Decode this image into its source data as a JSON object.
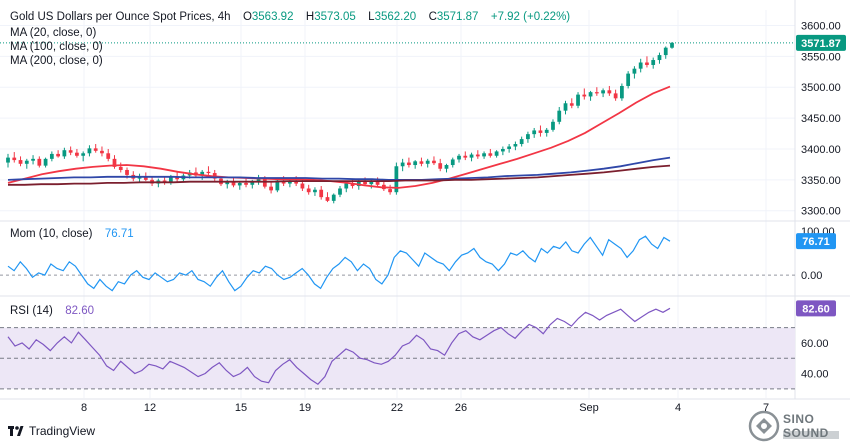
{
  "header": {
    "symbol": "Gold US Dollars per Ounce Spot Prices, 4h",
    "o_label": "O",
    "o_value": "3563.92",
    "h_label": "H",
    "h_value": "3573.05",
    "l_label": "L",
    "l_value": "3562.20",
    "c_label": "C",
    "c_value": "3571.87",
    "change": "+7.92 (+0.22%)"
  },
  "ma_legends": [
    "MA (20, close, 0)",
    "MA (100, close, 0)",
    "MA (200, close, 0)"
  ],
  "momentum": {
    "label": "Mom (10, close)",
    "value": "76.71"
  },
  "rsi": {
    "label": "RSI (14)",
    "value": "82.60"
  },
  "brand": {
    "tradingview": "TradingView",
    "watermark": "SINO SOUND"
  },
  "colors": {
    "up": "#089981",
    "down": "#f23645",
    "ma20": "#f23645",
    "ma100": "#2f47a8",
    "ma200": "#7b1f2e",
    "mom": "#2196f3",
    "rsi": "#7e57c2",
    "rsi_band": "#ede7f6",
    "grid": "#f0f3fa",
    "last_price": "#089981"
  },
  "chart_data": [
    {
      "type": "candlestick",
      "title": "Gold US Dollars per Ounce Spot Prices, 4h",
      "y_ticks": [
        3300,
        3350,
        3400,
        3450,
        3500,
        3550,
        3600
      ],
      "ylim": [
        3285,
        3625
      ],
      "last_price": 3571.87,
      "x_labels": [
        "8",
        "12",
        "15",
        "19",
        "22",
        "26",
        "Sep",
        "4",
        "7"
      ],
      "candles": [
        [
          3378,
          3392,
          3370,
          3386
        ],
        [
          3386,
          3395,
          3378,
          3382
        ],
        [
          3382,
          3388,
          3372,
          3376
        ],
        [
          3376,
          3384,
          3368,
          3381
        ],
        [
          3381,
          3390,
          3375,
          3384
        ],
        [
          3384,
          3388,
          3370,
          3373
        ],
        [
          3373,
          3386,
          3370,
          3384
        ],
        [
          3384,
          3396,
          3380,
          3392
        ],
        [
          3392,
          3398,
          3386,
          3388
        ],
        [
          3388,
          3402,
          3384,
          3398
        ],
        [
          3398,
          3404,
          3390,
          3394
        ],
        [
          3394,
          3400,
          3386,
          3389
        ],
        [
          3389,
          3396,
          3380,
          3393
        ],
        [
          3393,
          3406,
          3388,
          3401
        ],
        [
          3401,
          3408,
          3394,
          3397
        ],
        [
          3397,
          3404,
          3388,
          3393
        ],
        [
          3393,
          3400,
          3380,
          3384
        ],
        [
          3384,
          3390,
          3368,
          3371
        ],
        [
          3371,
          3378,
          3362,
          3366
        ],
        [
          3366,
          3370,
          3352,
          3358
        ],
        [
          3358,
          3364,
          3348,
          3352
        ],
        [
          3352,
          3360,
          3345,
          3356
        ],
        [
          3356,
          3362,
          3348,
          3350
        ],
        [
          3350,
          3356,
          3340,
          3344
        ],
        [
          3344,
          3352,
          3338,
          3349
        ],
        [
          3349,
          3356,
          3342,
          3346
        ],
        [
          3346,
          3358,
          3342,
          3354
        ],
        [
          3354,
          3362,
          3346,
          3351
        ],
        [
          3351,
          3360,
          3346,
          3357
        ],
        [
          3357,
          3366,
          3352,
          3362
        ],
        [
          3362,
          3370,
          3354,
          3357
        ],
        [
          3357,
          3366,
          3350,
          3363
        ],
        [
          3363,
          3372,
          3358,
          3361
        ],
        [
          3361,
          3366,
          3348,
          3352
        ],
        [
          3352,
          3356,
          3340,
          3343
        ],
        [
          3343,
          3350,
          3336,
          3347
        ],
        [
          3347,
          3354,
          3338,
          3341
        ],
        [
          3341,
          3348,
          3334,
          3345
        ],
        [
          3345,
          3352,
          3338,
          3342
        ],
        [
          3342,
          3350,
          3336,
          3347
        ],
        [
          3347,
          3358,
          3342,
          3352
        ],
        [
          3352,
          3356,
          3336,
          3339
        ],
        [
          3339,
          3346,
          3328,
          3333
        ],
        [
          3333,
          3352,
          3330,
          3349
        ],
        [
          3349,
          3356,
          3340,
          3344
        ],
        [
          3344,
          3352,
          3338,
          3348
        ],
        [
          3348,
          3356,
          3340,
          3344
        ],
        [
          3344,
          3350,
          3332,
          3336
        ],
        [
          3336,
          3342,
          3326,
          3330
        ],
        [
          3330,
          3338,
          3324,
          3334
        ],
        [
          3334,
          3340,
          3318,
          3322
        ],
        [
          3322,
          3330,
          3314,
          3316
        ],
        [
          3316,
          3328,
          3312,
          3326
        ],
        [
          3326,
          3340,
          3322,
          3336
        ],
        [
          3336,
          3348,
          3330,
          3344
        ],
        [
          3344,
          3352,
          3336,
          3340
        ],
        [
          3340,
          3350,
          3334,
          3347
        ],
        [
          3347,
          3354,
          3340,
          3343
        ],
        [
          3343,
          3350,
          3336,
          3348
        ],
        [
          3348,
          3354,
          3340,
          3342
        ],
        [
          3342,
          3348,
          3332,
          3335
        ],
        [
          3335,
          3342,
          3326,
          3330
        ],
        [
          3330,
          3378,
          3326,
          3372
        ],
        [
          3372,
          3384,
          3364,
          3378
        ],
        [
          3378,
          3386,
          3370,
          3374
        ],
        [
          3374,
          3382,
          3368,
          3380
        ],
        [
          3380,
          3386,
          3372,
          3376
        ],
        [
          3376,
          3384,
          3370,
          3381
        ],
        [
          3381,
          3388,
          3374,
          3377
        ],
        [
          3377,
          3384,
          3364,
          3368
        ],
        [
          3368,
          3376,
          3362,
          3374
        ],
        [
          3374,
          3386,
          3370,
          3383
        ],
        [
          3383,
          3392,
          3378,
          3389
        ],
        [
          3389,
          3396,
          3382,
          3386
        ],
        [
          3386,
          3394,
          3380,
          3391
        ],
        [
          3391,
          3398,
          3384,
          3388
        ],
        [
          3388,
          3396,
          3384,
          3393
        ],
        [
          3393,
          3400,
          3386,
          3389
        ],
        [
          3389,
          3398,
          3386,
          3396
        ],
        [
          3396,
          3404,
          3390,
          3400
        ],
        [
          3400,
          3408,
          3394,
          3404
        ],
        [
          3404,
          3412,
          3398,
          3408
        ],
        [
          3408,
          3420,
          3404,
          3416
        ],
        [
          3416,
          3428,
          3410,
          3424
        ],
        [
          3424,
          3434,
          3418,
          3430
        ],
        [
          3430,
          3438,
          3420,
          3426
        ],
        [
          3426,
          3434,
          3420,
          3431
        ],
        [
          3431,
          3448,
          3428,
          3444
        ],
        [
          3444,
          3468,
          3440,
          3462
        ],
        [
          3462,
          3478,
          3456,
          3474
        ],
        [
          3474,
          3482,
          3466,
          3470
        ],
        [
          3470,
          3492,
          3466,
          3488
        ],
        [
          3488,
          3498,
          3480,
          3485
        ],
        [
          3485,
          3494,
          3478,
          3492
        ],
        [
          3492,
          3500,
          3486,
          3490
        ],
        [
          3490,
          3498,
          3484,
          3495
        ],
        [
          3495,
          3502,
          3486,
          3490
        ],
        [
          3490,
          3496,
          3478,
          3482
        ],
        [
          3482,
          3506,
          3478,
          3502
        ],
        [
          3502,
          3526,
          3498,
          3522
        ],
        [
          3522,
          3534,
          3514,
          3530
        ],
        [
          3530,
          3546,
          3524,
          3540
        ],
        [
          3540,
          3550,
          3532,
          3536
        ],
        [
          3536,
          3548,
          3530,
          3544
        ],
        [
          3544,
          3556,
          3538,
          3552
        ],
        [
          3552,
          3566,
          3546,
          3564
        ],
        [
          3563.92,
          3573.05,
          3562.2,
          3571.87
        ]
      ],
      "series": [
        {
          "name": "MA (20, close, 0)",
          "values": [
            3345,
            3352,
            3359,
            3364,
            3368,
            3371,
            3373,
            3374,
            3372,
            3368,
            3363,
            3359,
            3356,
            3354,
            3353,
            3352,
            3351,
            3351,
            3350,
            3348,
            3345,
            3341,
            3338,
            3337,
            3340,
            3345,
            3352,
            3360,
            3368,
            3376,
            3384,
            3393,
            3402,
            3413,
            3426,
            3442,
            3458,
            3475,
            3490,
            3501
          ]
        },
        {
          "name": "MA (100, close, 0)",
          "values": [
            3350,
            3351,
            3352,
            3353,
            3354,
            3354,
            3355,
            3355,
            3355,
            3355,
            3355,
            3354,
            3354,
            3354,
            3354,
            3353,
            3353,
            3353,
            3353,
            3352,
            3352,
            3351,
            3351,
            3350,
            3350,
            3350,
            3351,
            3352,
            3353,
            3354,
            3356,
            3357,
            3358,
            3360,
            3362,
            3365,
            3368,
            3372,
            3377,
            3382,
            3386
          ]
        },
        {
          "name": "MA (200, close, 0)",
          "values": [
            3342,
            3342,
            3343,
            3343,
            3344,
            3344,
            3345,
            3345,
            3346,
            3346,
            3346,
            3347,
            3347,
            3347,
            3347,
            3347,
            3347,
            3348,
            3348,
            3348,
            3348,
            3348,
            3348,
            3348,
            3349,
            3349,
            3349,
            3350,
            3350,
            3351,
            3352,
            3353,
            3354,
            3356,
            3358,
            3360,
            3362,
            3365,
            3368,
            3371,
            3373
          ]
        }
      ]
    },
    {
      "type": "line",
      "title": "Mom (10, close)",
      "y_ticks": [
        0,
        100
      ],
      "ylim": [
        -45,
        120
      ],
      "last_value": 76.71,
      "series": [
        {
          "name": "Mom (10, close)",
          "values": [
            20,
            10,
            30,
            15,
            -5,
            5,
            0,
            25,
            15,
            10,
            30,
            20,
            0,
            -20,
            -30,
            -10,
            -25,
            -35,
            -15,
            -20,
            0,
            10,
            -5,
            -10,
            5,
            -5,
            -15,
            -10,
            5,
            0,
            10,
            -10,
            -15,
            -25,
            -5,
            10,
            -15,
            -35,
            -25,
            -5,
            10,
            5,
            20,
            15,
            0,
            -10,
            -5,
            5,
            15,
            0,
            -20,
            -30,
            -5,
            15,
            25,
            40,
            30,
            10,
            25,
            15,
            -10,
            -20,
            0,
            40,
            55,
            50,
            35,
            20,
            50,
            40,
            30,
            25,
            10,
            30,
            45,
            50,
            60,
            40,
            30,
            25,
            10,
            25,
            50,
            45,
            55,
            40,
            30,
            60,
            50,
            65,
            60,
            75,
            55,
            50,
            70,
            85,
            65,
            45,
            80,
            70,
            60,
            40,
            55,
            80,
            88,
            70,
            60,
            85,
            76.71
          ]
        }
      ]
    },
    {
      "type": "line",
      "title": "RSI (14)",
      "y_ticks": [
        40,
        60
      ],
      "ylim": [
        24,
        90
      ],
      "band": [
        30,
        70
      ],
      "last_value": 82.6,
      "series": [
        {
          "name": "RSI (14)",
          "values": [
            64,
            58,
            60,
            56,
            62,
            59,
            55,
            60,
            64,
            60,
            67,
            62,
            57,
            52,
            45,
            42,
            48,
            44,
            40,
            42,
            46,
            45,
            43,
            48,
            46,
            44,
            41,
            38,
            40,
            44,
            47,
            42,
            38,
            40,
            44,
            38,
            35,
            34,
            42,
            46,
            49,
            44,
            40,
            36,
            33,
            38,
            48,
            52,
            56,
            54,
            50,
            49,
            47,
            46,
            48,
            52,
            58,
            60,
            65,
            62,
            56,
            55,
            52,
            60,
            66,
            68,
            64,
            62,
            65,
            68,
            70,
            66,
            63,
            68,
            72,
            70,
            66,
            72,
            76,
            74,
            71,
            76,
            80,
            78,
            75,
            78,
            80,
            82,
            78,
            74,
            77,
            80,
            82,
            80,
            82.6
          ]
        }
      ]
    }
  ]
}
